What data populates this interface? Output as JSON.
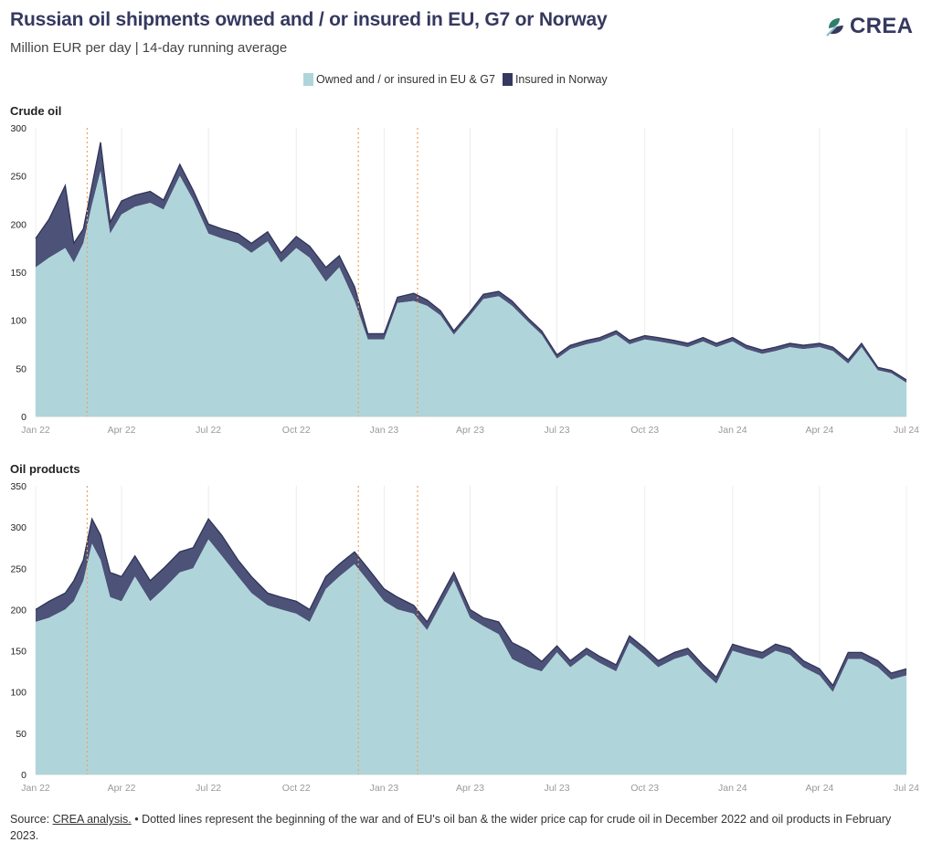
{
  "header": {
    "title": "Russian oil shipments owned and / or insured in EU, G7 or Norway",
    "subtitle": "Million EUR per day | 14-day running average"
  },
  "logo": {
    "text": "CREA",
    "icon": "crea-leaf-icon",
    "colors": [
      "#2e7d6b",
      "#35395f",
      "#8ab8c4"
    ]
  },
  "legend": [
    {
      "label": "Owned and / or insured in EU & G7",
      "color": "#afd5da"
    },
    {
      "label": "Insured in Norway",
      "color": "#35395f"
    }
  ],
  "colors": {
    "eu_g7": "#afd5da",
    "norway": "#4d5278",
    "outline": "#2f3357",
    "event_line": "#f0a063",
    "grid": "#ececec"
  },
  "chart_data": [
    {
      "type": "area",
      "title": "Crude oil",
      "stacked": true,
      "ylim": [
        0,
        300
      ],
      "yticks": [
        0,
        50,
        100,
        150,
        200,
        250,
        300
      ],
      "xticks": [
        "Jan 22",
        "Apr 22",
        "Jul 22",
        "Oct 22",
        "Jan 23",
        "Apr 23",
        "Jul 23",
        "Oct 23",
        "Jan 24",
        "Apr 24",
        "Jul 24"
      ],
      "event_lines": [
        "2022-02-24",
        "2022-12-05",
        "2023-02-05"
      ],
      "x": [
        "2022-01-01",
        "2022-01-15",
        "2022-02-01",
        "2022-02-10",
        "2022-02-20",
        "2022-03-01",
        "2022-03-10",
        "2022-03-20",
        "2022-04-01",
        "2022-04-15",
        "2022-05-01",
        "2022-05-15",
        "2022-06-01",
        "2022-06-15",
        "2022-07-01",
        "2022-07-15",
        "2022-08-01",
        "2022-08-15",
        "2022-09-01",
        "2022-09-15",
        "2022-10-01",
        "2022-10-15",
        "2022-11-01",
        "2022-11-15",
        "2022-12-01",
        "2022-12-15",
        "2023-01-01",
        "2023-01-15",
        "2023-02-01",
        "2023-02-15",
        "2023-03-01",
        "2023-03-15",
        "2023-04-01",
        "2023-04-15",
        "2023-05-01",
        "2023-05-15",
        "2023-06-01",
        "2023-06-15",
        "2023-07-01",
        "2023-07-15",
        "2023-08-01",
        "2023-08-15",
        "2023-09-01",
        "2023-09-15",
        "2023-10-01",
        "2023-10-15",
        "2023-11-01",
        "2023-11-15",
        "2023-12-01",
        "2023-12-15",
        "2024-01-01",
        "2024-01-15",
        "2024-02-01",
        "2024-02-15",
        "2024-03-01",
        "2024-03-15",
        "2024-04-01",
        "2024-04-15",
        "2024-05-01",
        "2024-05-15",
        "2024-06-01",
        "2024-06-15",
        "2024-07-01"
      ],
      "series": [
        {
          "name": "Owned and / or insured in EU & G7",
          "values": [
            155,
            165,
            175,
            160,
            180,
            220,
            255,
            190,
            210,
            218,
            222,
            215,
            250,
            225,
            190,
            185,
            180,
            170,
            182,
            160,
            175,
            165,
            140,
            155,
            120,
            80,
            80,
            118,
            120,
            115,
            105,
            85,
            105,
            122,
            125,
            115,
            98,
            85,
            60,
            70,
            75,
            78,
            85,
            75,
            80,
            78,
            75,
            72,
            78,
            72,
            78,
            70,
            65,
            68,
            72,
            70,
            72,
            68,
            55,
            72,
            48,
            45,
            35
          ]
        },
        {
          "name": "Insured in Norway",
          "values": [
            30,
            40,
            65,
            20,
            15,
            20,
            30,
            12,
            14,
            12,
            12,
            10,
            12,
            10,
            10,
            10,
            10,
            10,
            10,
            10,
            12,
            12,
            15,
            12,
            15,
            6,
            6,
            6,
            8,
            6,
            5,
            4,
            4,
            5,
            5,
            5,
            4,
            4,
            4,
            4,
            4,
            4,
            4,
            4,
            4,
            4,
            4,
            4,
            4,
            4,
            4,
            4,
            4,
            4,
            4,
            4,
            4,
            4,
            4,
            4,
            3,
            3,
            3
          ]
        }
      ]
    },
    {
      "type": "area",
      "title": "Oil products",
      "stacked": true,
      "ylim": [
        0,
        350
      ],
      "yticks": [
        0,
        50,
        100,
        150,
        200,
        250,
        300,
        350
      ],
      "xticks": [
        "Jan 22",
        "Apr 22",
        "Jul 22",
        "Oct 22",
        "Jan 23",
        "Apr 23",
        "Jul 23",
        "Oct 23",
        "Jan 24",
        "Apr 24",
        "Jul 24"
      ],
      "event_lines": [
        "2022-02-24",
        "2022-12-05",
        "2023-02-05"
      ],
      "x": [
        "2022-01-01",
        "2022-01-15",
        "2022-02-01",
        "2022-02-10",
        "2022-02-20",
        "2022-03-01",
        "2022-03-10",
        "2022-03-20",
        "2022-04-01",
        "2022-04-15",
        "2022-05-01",
        "2022-05-15",
        "2022-06-01",
        "2022-06-15",
        "2022-07-01",
        "2022-07-15",
        "2022-08-01",
        "2022-08-15",
        "2022-09-01",
        "2022-09-15",
        "2022-10-01",
        "2022-10-15",
        "2022-11-01",
        "2022-11-15",
        "2022-12-01",
        "2022-12-15",
        "2023-01-01",
        "2023-01-15",
        "2023-02-01",
        "2023-02-15",
        "2023-03-01",
        "2023-03-15",
        "2023-04-01",
        "2023-04-15",
        "2023-05-01",
        "2023-05-15",
        "2023-06-01",
        "2023-06-15",
        "2023-07-01",
        "2023-07-15",
        "2023-08-01",
        "2023-08-15",
        "2023-09-01",
        "2023-09-15",
        "2023-10-01",
        "2023-10-15",
        "2023-11-01",
        "2023-11-15",
        "2023-12-01",
        "2023-12-15",
        "2024-01-01",
        "2024-01-15",
        "2024-02-01",
        "2024-02-15",
        "2024-03-01",
        "2024-03-15",
        "2024-04-01",
        "2024-04-15",
        "2024-05-01",
        "2024-05-15",
        "2024-06-01",
        "2024-06-15",
        "2024-07-01"
      ],
      "series": [
        {
          "name": "Owned and / or insured in EU & G7",
          "values": [
            185,
            190,
            200,
            210,
            235,
            280,
            260,
            215,
            210,
            240,
            210,
            225,
            245,
            250,
            285,
            265,
            240,
            220,
            205,
            200,
            195,
            185,
            225,
            240,
            255,
            235,
            210,
            200,
            195,
            175,
            205,
            235,
            190,
            180,
            170,
            140,
            130,
            125,
            148,
            130,
            145,
            135,
            125,
            160,
            145,
            130,
            140,
            145,
            125,
            110,
            150,
            145,
            140,
            150,
            145,
            130,
            120,
            100,
            140,
            140,
            130,
            115,
            120
          ]
        },
        {
          "name": "Insured in Norway",
          "values": [
            15,
            20,
            20,
            25,
            25,
            30,
            30,
            30,
            30,
            25,
            25,
            25,
            25,
            25,
            25,
            25,
            20,
            20,
            15,
            15,
            15,
            15,
            15,
            15,
            15,
            15,
            15,
            15,
            10,
            10,
            10,
            10,
            10,
            10,
            15,
            20,
            20,
            12,
            8,
            8,
            8,
            8,
            8,
            8,
            8,
            8,
            8,
            8,
            8,
            8,
            8,
            8,
            8,
            8,
            8,
            8,
            8,
            8,
            8,
            8,
            8,
            8,
            8
          ]
        }
      ]
    }
  ],
  "footer": {
    "source_label": "Source:",
    "source_link": "CREA analysis.",
    "note": "• Dotted lines represent the beginning of the war and of EU's oil ban & the wider price cap for crude oil in December 2022 and oil products in February 2023."
  }
}
